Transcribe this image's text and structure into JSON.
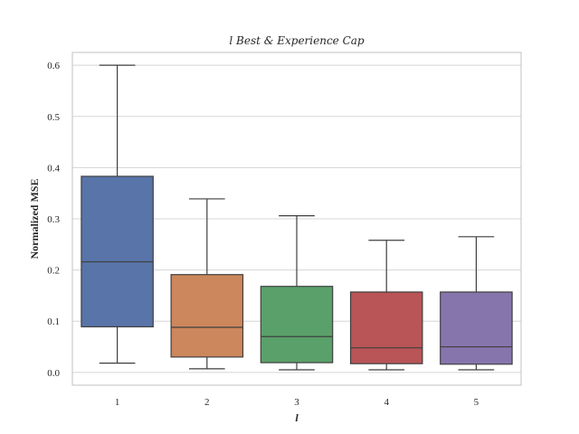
{
  "chart_data": {
    "type": "box",
    "title": "l Best & Experience Cap",
    "xlabel": "l",
    "ylabel": "Normalized MSE",
    "ylim": [
      -0.025,
      0.625
    ],
    "yticks": [
      "0.0",
      "0.1",
      "0.2",
      "0.3",
      "0.4",
      "0.5",
      "0.6"
    ],
    "ytick_values": [
      0.0,
      0.1,
      0.2,
      0.3,
      0.4,
      0.5,
      0.6
    ],
    "grid": true,
    "categories": [
      "1",
      "2",
      "3",
      "4",
      "5"
    ],
    "boxes": [
      {
        "category": "1",
        "whislo": 0.018,
        "q1": 0.089,
        "med": 0.216,
        "q3": 0.383,
        "whishi": 0.6,
        "color": "#5874a8"
      },
      {
        "category": "2",
        "whislo": 0.007,
        "q1": 0.03,
        "med": 0.088,
        "q3": 0.191,
        "whishi": 0.339,
        "color": "#cd875c"
      },
      {
        "category": "3",
        "whislo": 0.005,
        "q1": 0.019,
        "med": 0.07,
        "q3": 0.168,
        "whishi": 0.306,
        "color": "#5aa06a"
      },
      {
        "category": "4",
        "whislo": 0.005,
        "q1": 0.017,
        "med": 0.048,
        "q3": 0.157,
        "whishi": 0.258,
        "color": "#b95457"
      },
      {
        "category": "5",
        "whislo": 0.005,
        "q1": 0.016,
        "med": 0.05,
        "q3": 0.157,
        "whishi": 0.265,
        "color": "#8675ac"
      }
    ]
  }
}
